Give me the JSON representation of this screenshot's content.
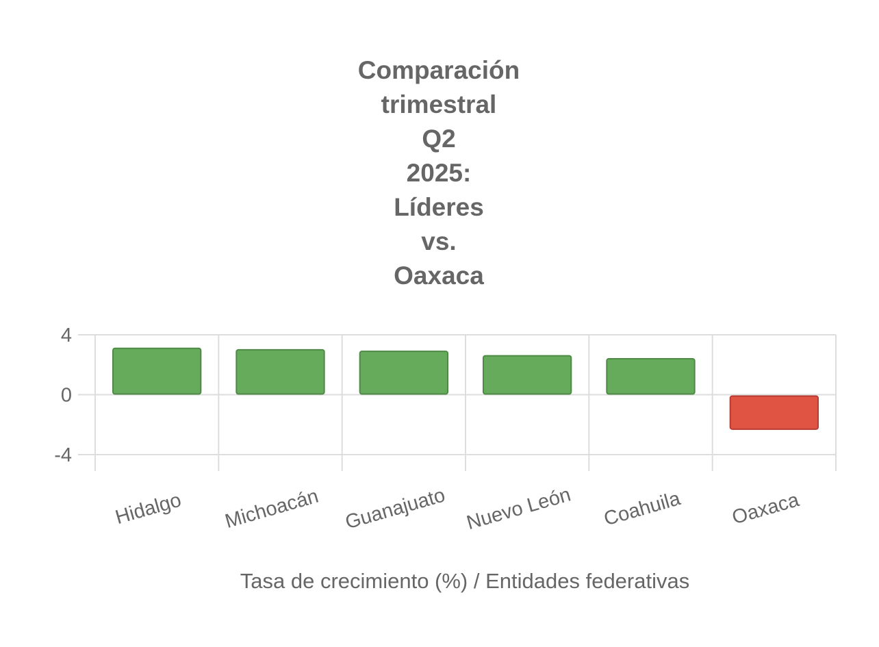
{
  "chart_data": {
    "type": "bar",
    "title_lines": [
      "Comparación",
      "trimestral",
      "Q2",
      "2025:",
      "Líderes",
      "vs.",
      "Oaxaca"
    ],
    "categories": [
      "Hidalgo",
      "Michoacán",
      "Guanajuato",
      "Nuevo León",
      "Coahuila",
      "Oaxaca"
    ],
    "values": [
      3.1,
      3.0,
      2.9,
      2.6,
      2.4,
      -2.3
    ],
    "xlabel": "Tasa de crecimiento (%) / Entidades federativas",
    "ylabel": "",
    "ylim": [
      -4,
      4
    ],
    "yticks": [
      "4",
      "0",
      "-4"
    ],
    "grid": true,
    "colors": {
      "positive": "#66ab5b",
      "positive_border": "#4e8a45",
      "negative": "#e05444",
      "negative_border": "#b83a30"
    }
  }
}
